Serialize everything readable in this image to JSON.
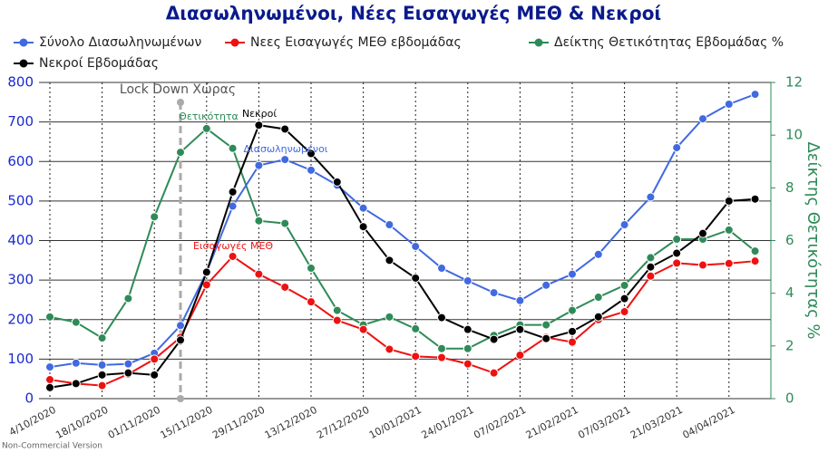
{
  "chart_data": {
    "type": "line",
    "title": "Διασωληνωμένοι, Νέες Εισαγωγές ΜΕΘ & Νεκροί",
    "categories": [
      "4/10/2020",
      null,
      "18/10/2020",
      null,
      "01/11/2020",
      null,
      "15/11/2020",
      null,
      "29/11/2020",
      null,
      "13/12/2020",
      null,
      "27/12/2020",
      null,
      "10/01/2021",
      null,
      "24/01/2021",
      null,
      "07/02/2021",
      null,
      "21/02/2021",
      null,
      "07/03/2021",
      null,
      "21/03/2021",
      null,
      "04/04/2021",
      null
    ],
    "series": [
      {
        "name": "Σύνολο Διασωληνωμένων",
        "color": "#4169e1",
        "values": [
          80,
          90,
          85,
          88,
          115,
          185,
          320,
          487,
          590,
          605,
          578,
          540,
          482,
          440,
          385,
          330,
          298,
          268,
          248,
          287,
          315,
          365,
          440,
          510,
          635,
          708,
          745,
          770
        ]
      },
      {
        "name": "Νεες Εισαγωγές ΜΕΘ εβδομάδας",
        "color": "#ee1111",
        "values": [
          48,
          38,
          33,
          62,
          100,
          155,
          288,
          360,
          315,
          282,
          245,
          198,
          175,
          125,
          107,
          104,
          88,
          65,
          110,
          155,
          143,
          200,
          220,
          310,
          343,
          338,
          342,
          348
        ]
      },
      {
        "name": "Δείκτης Θετικότητας Εβδομάδας %",
        "color": "#2e8b57",
        "axis": "y2",
        "values": [
          3.1,
          2.9,
          2.3,
          3.8,
          6.9,
          9.35,
          10.25,
          9.5,
          6.75,
          6.65,
          4.95,
          3.35,
          2.8,
          3.1,
          2.65,
          1.9,
          1.9,
          2.4,
          2.8,
          2.8,
          3.35,
          3.85,
          4.3,
          5.35,
          6.05,
          6.05,
          6.4,
          5.6
        ]
      },
      {
        "name": "Νεκροί Εβδομάδας",
        "color": "#000000",
        "values": [
          28,
          38,
          60,
          65,
          60,
          148,
          320,
          523,
          692,
          682,
          620,
          548,
          435,
          350,
          305,
          205,
          175,
          150,
          175,
          152,
          170,
          207,
          253,
          333,
          368,
          418,
          500,
          505
        ]
      }
    ],
    "ylim": [
      0,
      800
    ],
    "yticks": [
      0,
      100,
      200,
      300,
      400,
      500,
      600,
      700,
      800
    ],
    "y2lim": [
      0,
      12
    ],
    "y2ticks": [
      0,
      2,
      4,
      6,
      8,
      10,
      12
    ],
    "y2label": "Δείκτης Θετικότητας %",
    "grid": true,
    "annotations": [
      {
        "text": "Lock Down Χώρας",
        "color": "#555555"
      },
      {
        "text": "Θετικότητα",
        "color": "#2e8b57"
      },
      {
        "text": "Νεκροί",
        "color": "#000000"
      },
      {
        "text": "Διασωληνωμένοι",
        "color": "#4169e1"
      },
      {
        "text": "Εισαγωγές ΜΕΘ",
        "color": "#ee1111"
      }
    ],
    "footnote": "Non-Commercial Version"
  }
}
